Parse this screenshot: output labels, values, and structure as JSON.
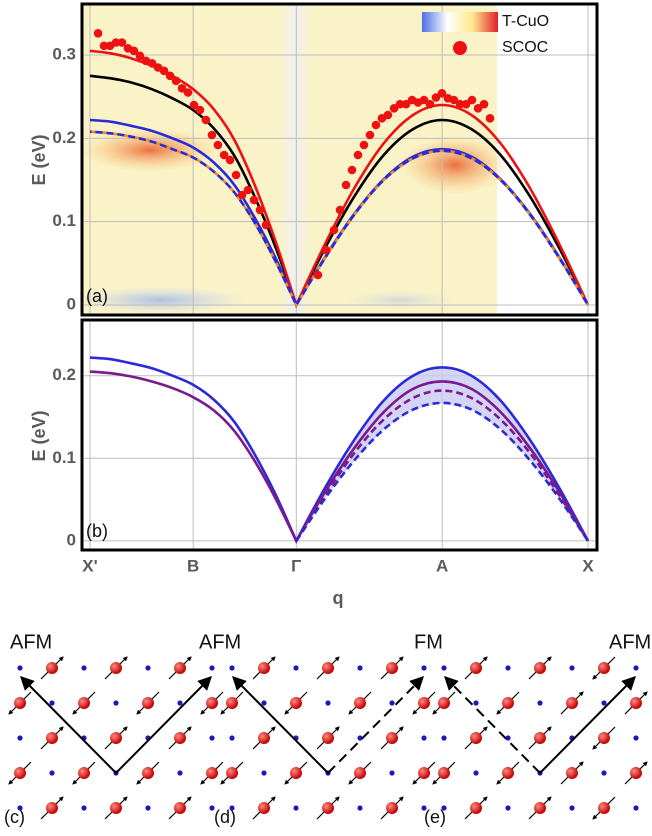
{
  "chart_data": [
    {
      "type": "line",
      "ylabel": "E (eV)",
      "panel_label": "(a)",
      "xlim": [
        0,
        2.414
      ],
      "ylim": [
        -0.012,
        0.36
      ],
      "xticks": [
        0,
        0.5,
        1,
        1.707,
        2.414
      ],
      "yticks": [
        0,
        0.1,
        0.2,
        0.3
      ],
      "grid": true,
      "x": [
        0,
        0.1,
        0.2,
        0.3,
        0.4,
        0.5,
        0.6,
        0.7,
        0.8,
        0.9,
        1,
        1.141,
        1.283,
        1.424,
        1.566,
        1.707,
        1.849,
        1.99,
        2.131,
        2.273,
        2.414
      ],
      "series": [
        {
          "color": "#000000",
          "values": [
            0.275,
            0.272,
            0.267,
            0.259,
            0.248,
            0.234,
            0.212,
            0.179,
            0.129,
            0.069,
            0,
            0.069,
            0.131,
            0.18,
            0.211,
            0.222,
            0.211,
            0.18,
            0.131,
            0.069,
            0
          ]
        },
        {
          "color": "#ee1111",
          "values": [
            0.305,
            0.302,
            0.296,
            0.287,
            0.275,
            0.259,
            0.235,
            0.198,
            0.143,
            0.076,
            0,
            0.074,
            0.141,
            0.194,
            0.228,
            0.24,
            0.228,
            0.194,
            0.141,
            0.074,
            0
          ]
        },
        {
          "color": "#2a2ad8",
          "values": [
            0.222,
            0.22,
            0.215,
            0.209,
            0.2,
            0.189,
            0.171,
            0.144,
            0.104,
            0.056,
            0,
            0.058,
            0.11,
            0.151,
            0.178,
            0.187,
            0.178,
            0.151,
            0.11,
            0.058,
            0
          ]
        },
        {
          "color": "#f08a24",
          "dash_color": "#2a2ad8",
          "dash": true,
          "values": [
            0.208,
            0.206,
            0.202,
            0.196,
            0.187,
            0.177,
            0.16,
            0.135,
            0.098,
            0.052,
            0,
            0.057,
            0.109,
            0.15,
            0.176,
            0.185,
            0.176,
            0.15,
            0.109,
            0.057,
            0
          ]
        }
      ],
      "scatter": {
        "name": "SCOC",
        "color": "#ee1111",
        "x": [
          0.039,
          0.068,
          0.097,
          0.126,
          0.155,
          0.184,
          0.213,
          0.242,
          0.271,
          0.301,
          0.33,
          0.359,
          0.388,
          0.417,
          0.446,
          0.475,
          0.504,
          0.533,
          0.562,
          0.591,
          0.62,
          0.65,
          0.679,
          0.708,
          0.737,
          0.766,
          0.795,
          0.824,
          0.853,
          1.105,
          1.144,
          1.183,
          1.212,
          1.241,
          1.27,
          1.299,
          1.328,
          1.357,
          1.386,
          1.415,
          1.444,
          1.474,
          1.503,
          1.532,
          1.561,
          1.59,
          1.619,
          1.648,
          1.677,
          1.706,
          1.735,
          1.764,
          1.794,
          1.823,
          1.852,
          1.881,
          1.91,
          1.939
        ],
        "y": [
          0.326,
          0.311,
          0.311,
          0.315,
          0.315,
          0.308,
          0.305,
          0.299,
          0.293,
          0.29,
          0.285,
          0.281,
          0.275,
          0.269,
          0.26,
          0.255,
          0.24,
          0.234,
          0.222,
          0.204,
          0.192,
          0.18,
          0.174,
          0.156,
          0.132,
          0.138,
          0.126,
          0.114,
          0.096,
          0.036,
          0.066,
          0.09,
          0.114,
          0.144,
          0.162,
          0.18,
          0.192,
          0.204,
          0.216,
          0.224,
          0.228,
          0.236,
          0.241,
          0.241,
          0.246,
          0.243,
          0.246,
          0.241,
          0.249,
          0.254,
          0.248,
          0.246,
          0.241,
          0.241,
          0.246,
          0.236,
          0.241,
          0.224
        ]
      },
      "colorbar": {
        "name": "T-CuO",
        "colors": [
          "#4a6fe3",
          "#ffffff",
          "#fde88a",
          "#e0202a"
        ]
      },
      "legend": "upper right"
    },
    {
      "type": "line",
      "ylabel": "E (eV)",
      "xlabel": "q",
      "panel_label": "(b)",
      "xlim": [
        0,
        2.414
      ],
      "ylim": [
        -0.011,
        0.265
      ],
      "xticks": [
        {
          "value": 0,
          "label": "X'"
        },
        {
          "value": 0.5,
          "label": "B"
        },
        {
          "value": 1,
          "label": "Γ"
        },
        {
          "value": 1.707,
          "label": "A"
        },
        {
          "value": 2.414,
          "label": "X"
        }
      ],
      "yticks": [
        0,
        0.1,
        0.2
      ],
      "grid": true,
      "x": [
        0,
        0.1,
        0.2,
        0.3,
        0.4,
        0.5,
        0.6,
        0.7,
        0.8,
        0.9,
        1,
        1.141,
        1.283,
        1.424,
        1.566,
        1.707,
        1.849,
        1.99,
        2.131,
        2.273,
        2.414
      ],
      "series": [
        {
          "color": "#2a2ad8",
          "values": [
            0.222,
            0.22,
            0.215,
            0.209,
            0.2,
            0.189,
            0.171,
            0.144,
            0.104,
            0.056,
            0,
            0.065,
            0.123,
            0.17,
            0.2,
            0.21,
            0.2,
            0.17,
            0.123,
            0.065,
            0
          ]
        },
        {
          "color": "#7a1a8c",
          "values": [
            0.205,
            0.203,
            0.199,
            0.193,
            0.185,
            0.174,
            0.158,
            0.133,
            0.096,
            0.051,
            0,
            0.06,
            0.113,
            0.156,
            0.184,
            0.193,
            0.184,
            0.156,
            0.113,
            0.06,
            0
          ]
        },
        {
          "color": "#7a1a8c",
          "dash": true,
          "values": [
            null,
            null,
            null,
            null,
            null,
            null,
            null,
            null,
            null,
            null,
            0,
            0.056,
            0.107,
            0.147,
            0.173,
            0.182,
            0.173,
            0.147,
            0.107,
            0.056,
            0
          ]
        },
        {
          "color": "#2a2ad8",
          "dash": true,
          "fill_to_series": 0,
          "fill_color": "#c9c9f2",
          "values": [
            null,
            null,
            null,
            null,
            null,
            null,
            null,
            null,
            null,
            null,
            0,
            0.052,
            0.098,
            0.135,
            0.159,
            0.167,
            0.159,
            0.135,
            0.098,
            0.052,
            0
          ]
        }
      ]
    }
  ],
  "diagrams": {
    "labels": [
      "AFM",
      "AFM",
      "FM",
      "AFM"
    ],
    "panels": [
      "(c)",
      "(d)",
      "(e)"
    ]
  }
}
